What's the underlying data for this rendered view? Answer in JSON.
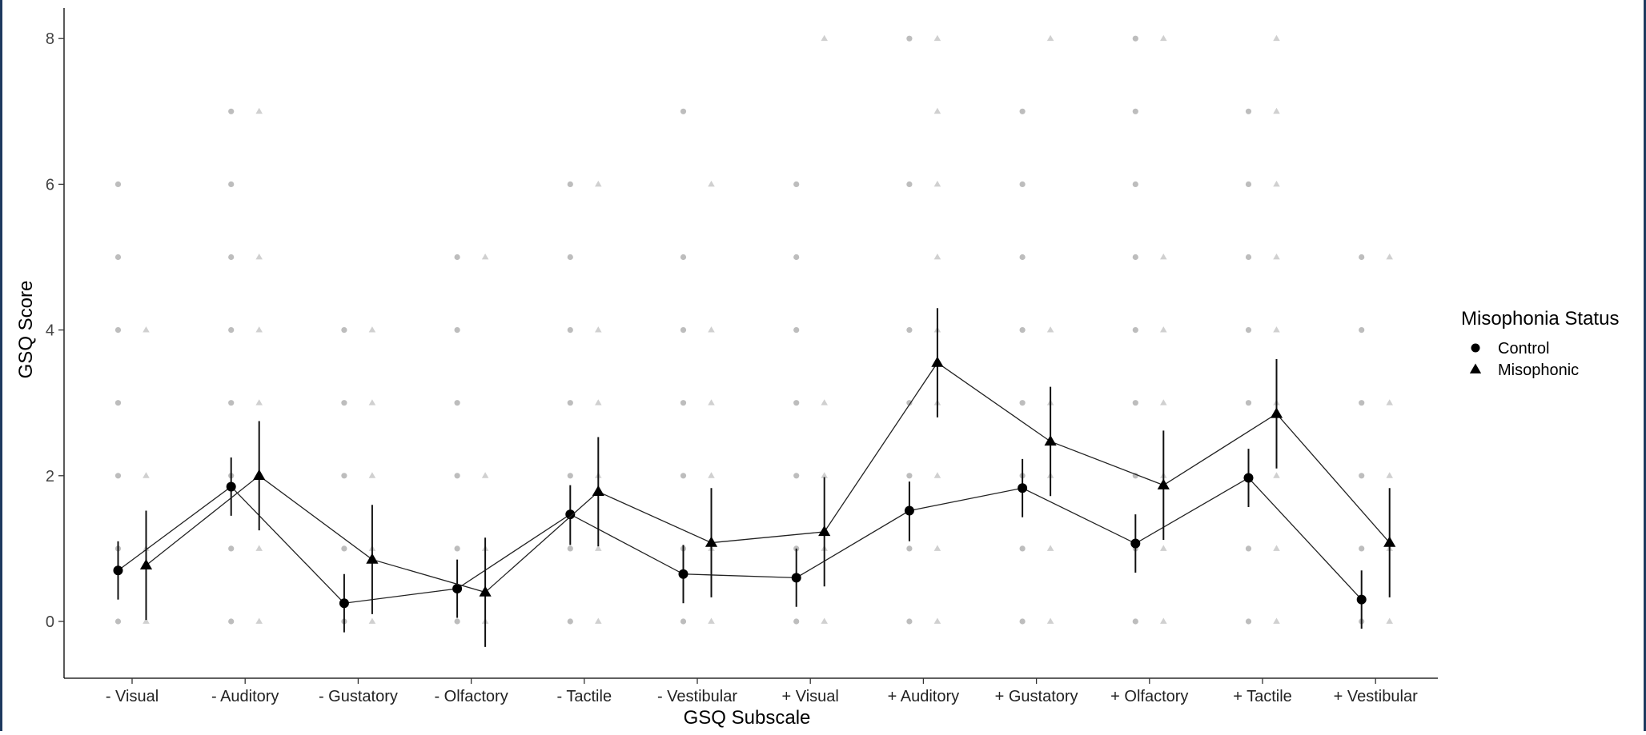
{
  "chart_data": {
    "type": "line",
    "title": "",
    "xlabel": "GSQ Subscale",
    "ylabel": "GSQ Score",
    "ylim": [
      -0.8,
      8.4
    ],
    "yticks": [
      "0",
      "2",
      "4",
      "6",
      "8"
    ],
    "grid": false,
    "legend_position": "right",
    "legend_title": "Misophonia Status",
    "categories": [
      "- Visual",
      "- Auditory",
      "- Gustatory",
      "- Olfactory",
      "- Tactile",
      "- Vestibular",
      "+ Visual",
      "+ Auditory",
      "+ Gustatory",
      "+ Olfactory",
      "+ Tactile",
      "+ Vestibular"
    ],
    "series": [
      {
        "name": "Control",
        "marker": "circle",
        "color": "#000000",
        "values": [
          0.7,
          1.85,
          0.25,
          0.45,
          1.47,
          0.65,
          0.6,
          1.52,
          1.83,
          1.07,
          1.97,
          0.3
        ],
        "ci_low": [
          0.3,
          1.45,
          -0.15,
          0.05,
          1.05,
          0.25,
          0.2,
          1.1,
          1.43,
          0.67,
          1.57,
          -0.1
        ],
        "ci_high": [
          1.1,
          2.25,
          0.65,
          0.85,
          1.87,
          1.05,
          1.0,
          1.92,
          2.23,
          1.47,
          2.37,
          0.7
        ],
        "raw_points": [
          [
            0,
            1,
            2,
            3,
            4,
            5,
            6
          ],
          [
            0,
            1,
            2,
            3,
            4,
            5,
            6,
            7
          ],
          [
            0,
            1,
            2,
            3,
            4
          ],
          [
            0,
            1,
            2,
            3,
            4,
            5
          ],
          [
            0,
            1,
            2,
            3,
            4,
            5,
            6
          ],
          [
            0,
            1,
            2,
            3,
            4,
            5,
            7
          ],
          [
            0,
            1,
            2,
            3,
            4,
            5,
            6
          ],
          [
            0,
            1,
            2,
            3,
            4,
            6,
            8
          ],
          [
            0,
            1,
            2,
            3,
            4,
            5,
            6,
            7
          ],
          [
            0,
            1,
            2,
            3,
            4,
            5,
            6,
            7,
            8
          ],
          [
            0,
            1,
            2,
            3,
            4,
            5,
            6,
            7
          ],
          [
            0,
            1,
            2,
            3,
            4,
            5
          ]
        ]
      },
      {
        "name": "Misophonic",
        "marker": "triangle",
        "color": "#000000",
        "values": [
          0.77,
          2.0,
          0.85,
          0.4,
          1.78,
          1.08,
          1.23,
          3.55,
          2.47,
          1.87,
          2.85,
          1.08
        ],
        "ci_low": [
          0.02,
          1.25,
          0.1,
          -0.35,
          1.03,
          0.33,
          0.48,
          2.8,
          1.72,
          1.12,
          2.1,
          0.33
        ],
        "ci_high": [
          1.52,
          2.75,
          1.6,
          1.15,
          2.53,
          1.83,
          1.98,
          4.3,
          3.22,
          2.62,
          3.6,
          1.83
        ],
        "raw_points": [
          [
            0,
            1,
            2,
            4
          ],
          [
            0,
            1,
            2,
            3,
            4,
            5,
            7
          ],
          [
            0,
            1,
            2,
            3,
            4
          ],
          [
            0,
            1,
            2,
            5
          ],
          [
            0,
            1,
            2,
            3,
            4,
            6
          ],
          [
            0,
            1,
            2,
            3,
            4,
            6
          ],
          [
            0,
            1,
            2,
            3,
            8
          ],
          [
            0,
            1,
            2,
            3,
            4,
            5,
            6,
            7,
            8
          ],
          [
            0,
            1,
            2,
            3,
            4,
            8
          ],
          [
            0,
            1,
            2,
            3,
            4,
            5,
            8
          ],
          [
            0,
            1,
            2,
            3,
            4,
            5,
            6,
            7,
            8
          ],
          [
            0,
            1,
            2,
            3,
            5
          ]
        ]
      }
    ]
  }
}
